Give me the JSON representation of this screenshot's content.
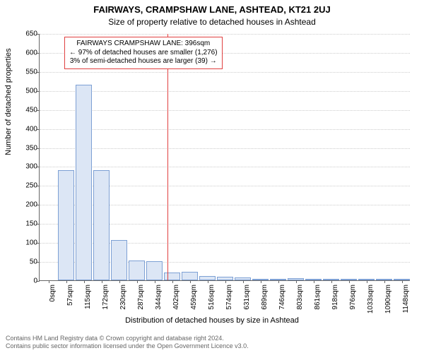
{
  "title_main": "FAIRWAYS, CRAMPSHAW LANE, ASHTEAD, KT21 2UJ",
  "title_sub": "Size of property relative to detached houses in Ashtead",
  "chart": {
    "type": "histogram",
    "ylabel": "Number of detached properties",
    "xlabel": "Distribution of detached houses by size in Ashtead",
    "ylim": [
      0,
      650
    ],
    "ytick_step": 50,
    "xtick_labels": [
      "0sqm",
      "57sqm",
      "115sqm",
      "172sqm",
      "230sqm",
      "287sqm",
      "344sqm",
      "402sqm",
      "459sqm",
      "516sqm",
      "574sqm",
      "631sqm",
      "689sqm",
      "746sqm",
      "803sqm",
      "861sqm",
      "918sqm",
      "976sqm",
      "1033sqm",
      "1090sqm",
      "1148sqm"
    ],
    "bar_values": [
      0,
      290,
      515,
      290,
      105,
      52,
      50,
      20,
      22,
      12,
      10,
      8,
      3,
      2,
      6,
      4,
      2,
      2,
      1,
      1,
      1
    ],
    "bar_fill": "#dce6f5",
    "bar_stroke": "#7da0d4",
    "grid_color": "#cccccc",
    "background": "#ffffff",
    "marker": {
      "x_value_sqm": 396,
      "x_max_sqm": 1148,
      "color": "#e04040",
      "lines": [
        "FAIRWAYS CRAMPSHAW LANE: 396sqm",
        "← 97% of detached houses are smaller (1,276)",
        "3% of semi-detached houses are larger (39) →"
      ]
    }
  },
  "footer": {
    "line1": "Contains HM Land Registry data © Crown copyright and database right 2024.",
    "line2": "Contains public sector information licensed under the Open Government Licence v3.0."
  },
  "fonts": {
    "title_main_pt": 13,
    "title_sub_pt": 12,
    "axis_label_pt": 11,
    "tick_pt": 10,
    "annotation_pt": 10,
    "footer_pt": 9
  }
}
